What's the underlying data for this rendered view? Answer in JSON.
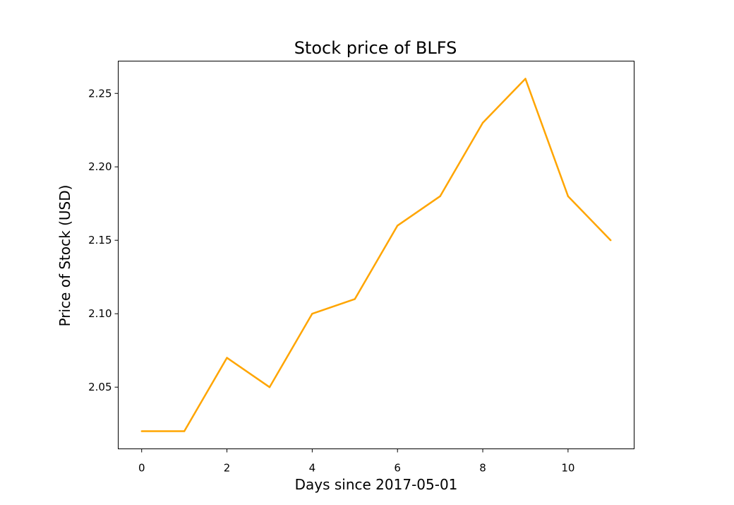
{
  "chart_data": {
    "type": "line",
    "title": "Stock price of BLFS",
    "xlabel": "Days since 2017-05-01",
    "ylabel": "Price of Stock (USD)",
    "x": [
      0,
      1,
      2,
      3,
      4,
      5,
      6,
      7,
      8,
      9,
      10,
      11
    ],
    "series": [
      {
        "values": [
          2.02,
          2.02,
          2.07,
          2.05,
          2.1,
          2.11,
          2.16,
          2.18,
          2.23,
          2.26,
          2.18,
          2.15
        ],
        "color": "#FFA500"
      }
    ],
    "xlim": [
      -0.55,
      11.55
    ],
    "ylim": [
      2.008,
      2.272
    ],
    "xticks": [
      0,
      2,
      4,
      6,
      8,
      10
    ],
    "yticks": [
      2.05,
      2.1,
      2.15,
      2.2,
      2.25
    ],
    "xtick_labels": [
      "0",
      "2",
      "4",
      "6",
      "8",
      "10"
    ],
    "ytick_labels": [
      "2.05",
      "2.10",
      "2.15",
      "2.20",
      "2.25"
    ],
    "grid": false,
    "legend": "none"
  }
}
